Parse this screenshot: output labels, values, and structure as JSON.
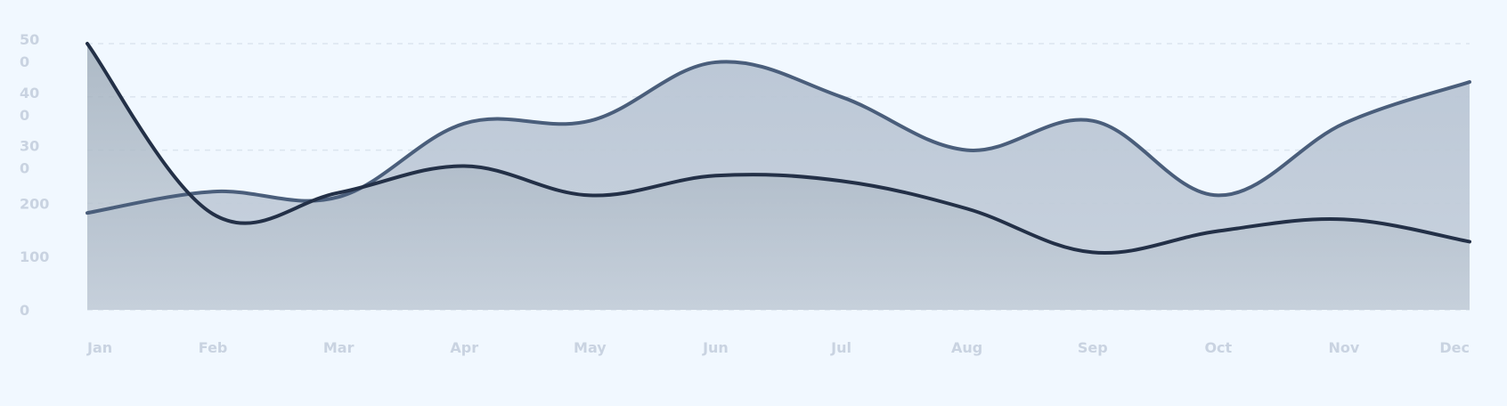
{
  "chart_data": {
    "type": "area",
    "categories": [
      "Jan",
      "Feb",
      "Mar",
      "Apr",
      "May",
      "Jun",
      "Jul",
      "Aug",
      "Sep",
      "Oct",
      "Nov",
      "Dec"
    ],
    "ylim": [
      0,
      500
    ],
    "y_ticks": [
      {
        "value": 0,
        "label": "0"
      },
      {
        "value": 100,
        "label": "100"
      },
      {
        "value": 200,
        "label": "200"
      },
      {
        "value": 300,
        "label": "30\n0"
      },
      {
        "value": 400,
        "label": "40\n0"
      },
      {
        "value": 500,
        "label": "50\n0"
      }
    ],
    "grid": true,
    "series": [
      {
        "color": "#4A5E7B",
        "values": [
          182,
          222,
          212,
          350,
          355,
          465,
          400,
          300,
          355,
          215,
          350,
          428
        ]
      },
      {
        "color": "#233047",
        "values": [
          500,
          180,
          220,
          270,
          215,
          252,
          242,
          190,
          108,
          148,
          170,
          128
        ]
      }
    ],
    "colors": {
      "background": "#F1F8FF",
      "grid": "#DCE5EF",
      "tick_text": "#C9D3E1"
    }
  }
}
